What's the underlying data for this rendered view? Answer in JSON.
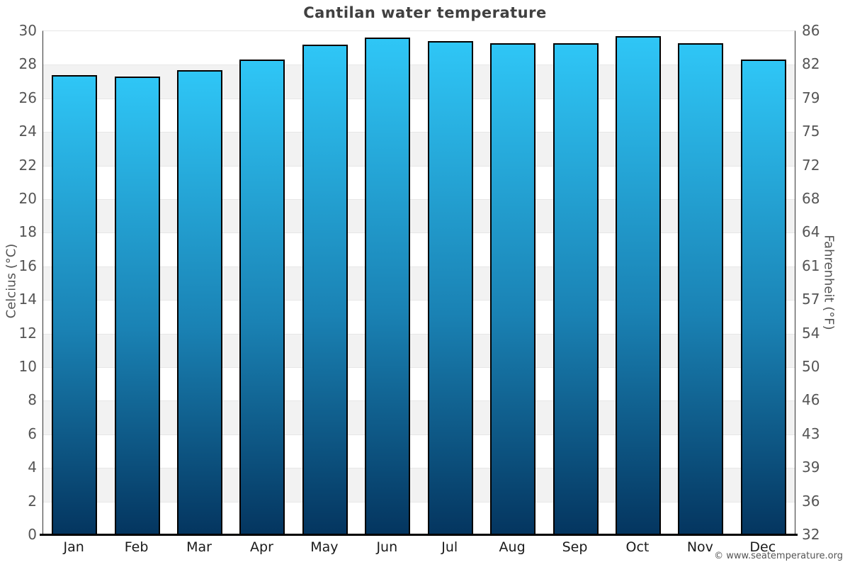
{
  "chart_data": {
    "type": "bar",
    "title": "Cantilan water temperature",
    "categories": [
      "Jan",
      "Feb",
      "Mar",
      "Apr",
      "May",
      "Jun",
      "Jul",
      "Aug",
      "Sep",
      "Oct",
      "Nov",
      "Dec"
    ],
    "values_c": [
      27.4,
      27.3,
      27.7,
      28.3,
      29.2,
      29.6,
      29.4,
      29.3,
      29.3,
      29.7,
      29.3,
      28.3
    ],
    "values_f": [
      81.3,
      81.1,
      81.9,
      82.9,
      84.6,
      85.3,
      84.9,
      84.7,
      84.7,
      85.5,
      84.7,
      82.9
    ],
    "xlabel": "",
    "ylabel_left": "Celcius (°C)",
    "ylabel_right": "Fahrenheit (°F)",
    "ylim_c": [
      0,
      30
    ],
    "ytick_step_c": 2,
    "yticks_c": [
      0,
      2,
      4,
      6,
      8,
      10,
      12,
      14,
      16,
      18,
      20,
      22,
      24,
      26,
      28,
      30
    ],
    "yticks_f": [
      "32",
      "36",
      "39",
      "43",
      "46",
      "50",
      "54",
      "57",
      "61",
      "64",
      "68",
      "72",
      "75",
      "79",
      "82",
      "86"
    ],
    "grid": "alternating horizontal bands every 2°C",
    "legend": "none",
    "footer": "© www.seatemperature.org",
    "colors": {
      "bar_gradient_top": "#2fc6f6",
      "bar_gradient_mid": "#1a82b4",
      "bar_gradient_bottom": "#04355f",
      "bar_border": "#000000",
      "band_gray": "#f2f2f2",
      "band_white": "#ffffff",
      "axis_line": "#000000",
      "title_text": "#404040",
      "tick_text": "#555555",
      "month_text": "#1a1a1a"
    }
  }
}
